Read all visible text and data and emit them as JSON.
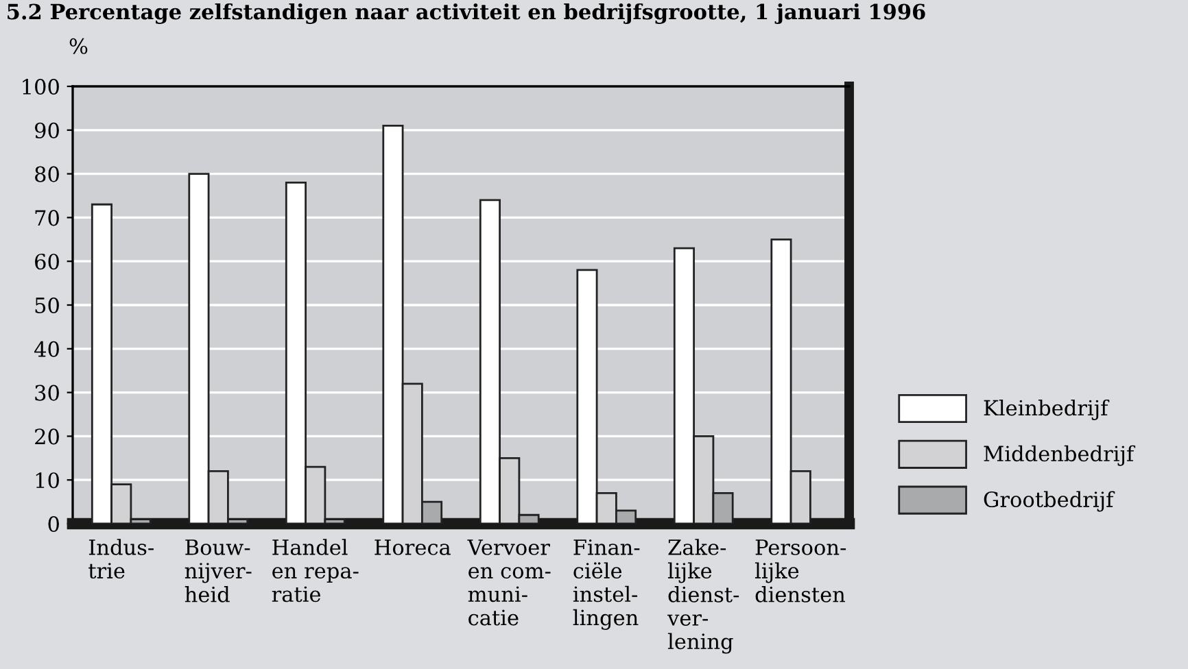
{
  "chart_data": {
    "type": "bar",
    "title": "5.2 Percentage zelfstandigen naar activiteit en bedrijfsgrootte, 1 januari 1996",
    "ylabel": "%",
    "categories": [
      "Indus-\ntrie",
      "Bouw-\nnijver-\nheid",
      "Handel\nen repa-\nratie",
      "Horeca",
      "Vervoer\nen com-\nmuni-\ncatie",
      "Finan-\nciële\ninstel-\nlingen",
      "Zake-\nlijke\ndienst-\nver-\nlening",
      "Persoon-\nlijke\ndiensten"
    ],
    "series": [
      {
        "name": "Kleinbedrijf",
        "color": "#ffffff",
        "values": [
          73,
          80,
          78,
          91,
          74,
          58,
          63,
          65
        ]
      },
      {
        "name": "Middenbedrijf",
        "color": "#d2d2d4",
        "values": [
          9,
          12,
          13,
          32,
          15,
          7,
          20,
          12
        ]
      },
      {
        "name": "Grootbedrijf",
        "color": "#a9aaac",
        "values": [
          1,
          1,
          1,
          5,
          2,
          3,
          7,
          null
        ]
      }
    ],
    "ylim": [
      0,
      100
    ],
    "yticks": [
      0,
      10,
      20,
      30,
      40,
      50,
      60,
      70,
      80,
      90,
      100
    ],
    "grid": "y",
    "legend": "bottom right"
  }
}
